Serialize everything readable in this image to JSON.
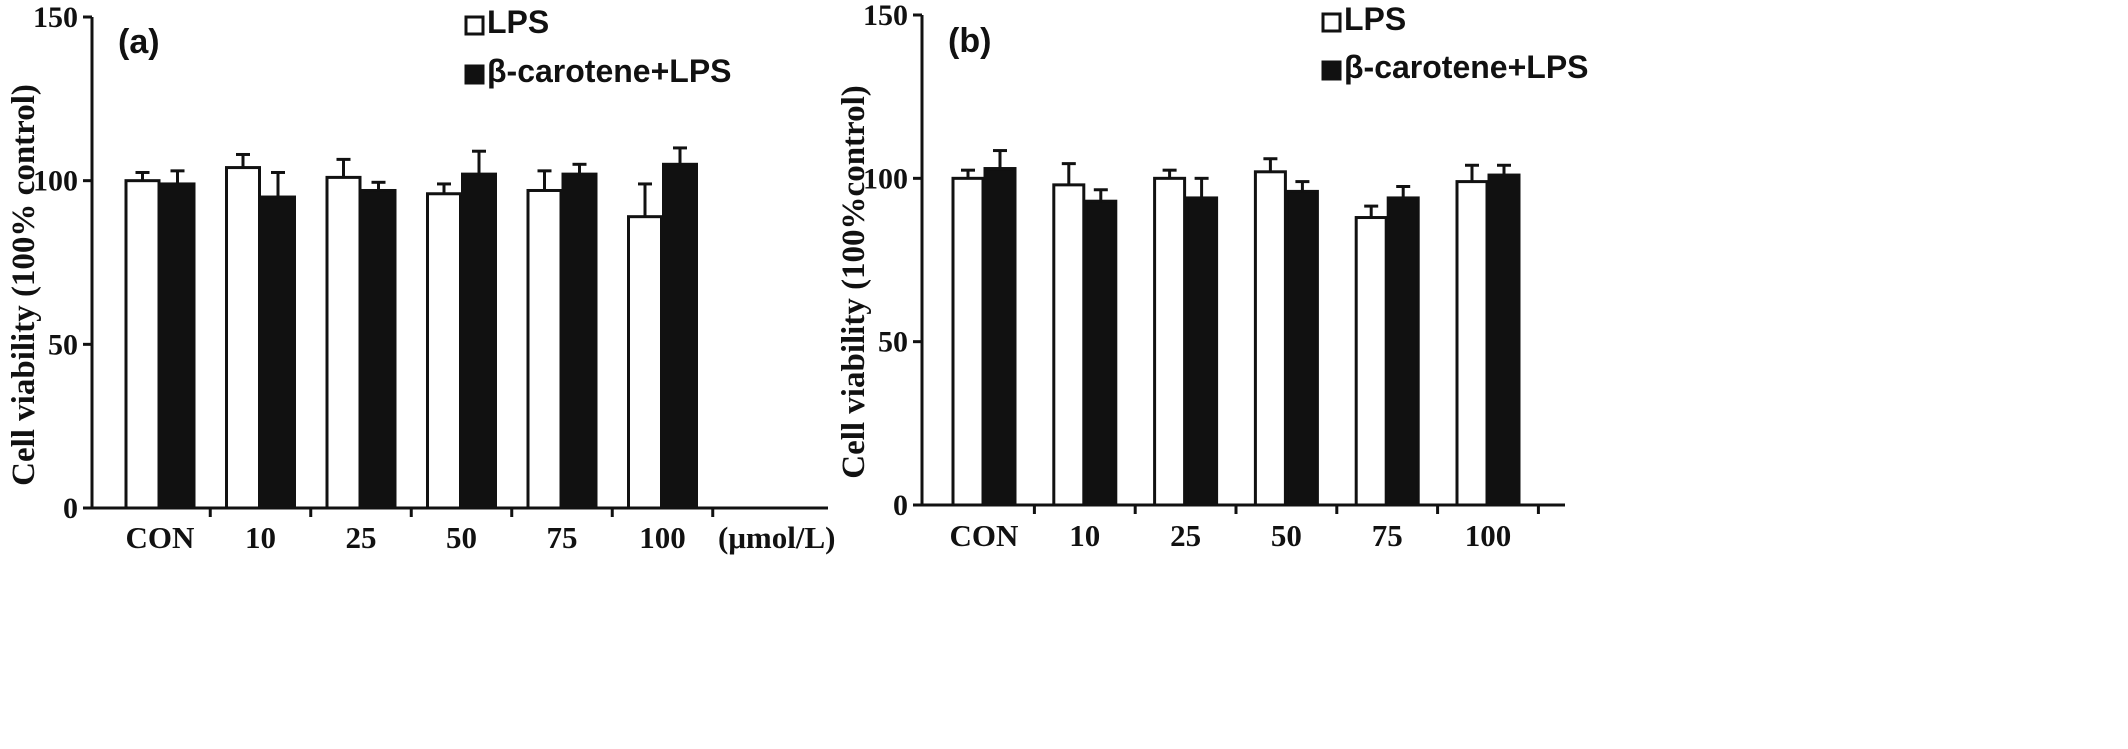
{
  "chart_data": [
    {
      "type": "bar",
      "panel_label": "(a)",
      "ylabel": "Cell viability (100% control)",
      "xlabel": "(μmol/L)",
      "ylim": [
        0,
        150
      ],
      "yticks": [
        "0",
        "50",
        "100",
        "150"
      ],
      "categories": [
        "CON",
        "10",
        "25",
        "50",
        "75",
        "100"
      ],
      "series": [
        {
          "name": "LPS",
          "fill": "#ffffff",
          "values": [
            100,
            104,
            101,
            96,
            97,
            89
          ],
          "errors": [
            2.5,
            4,
            5.5,
            3,
            6,
            10
          ]
        },
        {
          "name": "β-carotene+LPS",
          "fill": "#111111",
          "values": [
            99,
            95,
            97,
            102,
            102,
            105
          ],
          "errors": [
            4,
            7.5,
            2.5,
            7,
            3,
            5
          ]
        }
      ],
      "legend_position": "top-right",
      "grid": false
    },
    {
      "type": "bar",
      "panel_label": "(b)",
      "ylabel": "Cell viability (100%control)",
      "xlabel": "",
      "ylim": [
        0,
        150
      ],
      "yticks": [
        "0",
        "50",
        "100",
        "150"
      ],
      "categories": [
        "CON",
        "10",
        "25",
        "50",
        "75",
        "100"
      ],
      "series": [
        {
          "name": "LPS",
          "fill": "#ffffff",
          "values": [
            100,
            98,
            100,
            102,
            88,
            99
          ],
          "errors": [
            2.5,
            6.5,
            2.5,
            4,
            3.5,
            5
          ]
        },
        {
          "name": "β-carotene+LPS",
          "fill": "#111111",
          "values": [
            103,
            93,
            94,
            96,
            94,
            101
          ],
          "errors": [
            5.5,
            3.5,
            6,
            3,
            3.5,
            3
          ]
        }
      ],
      "legend_position": "top-right",
      "grid": false
    }
  ]
}
